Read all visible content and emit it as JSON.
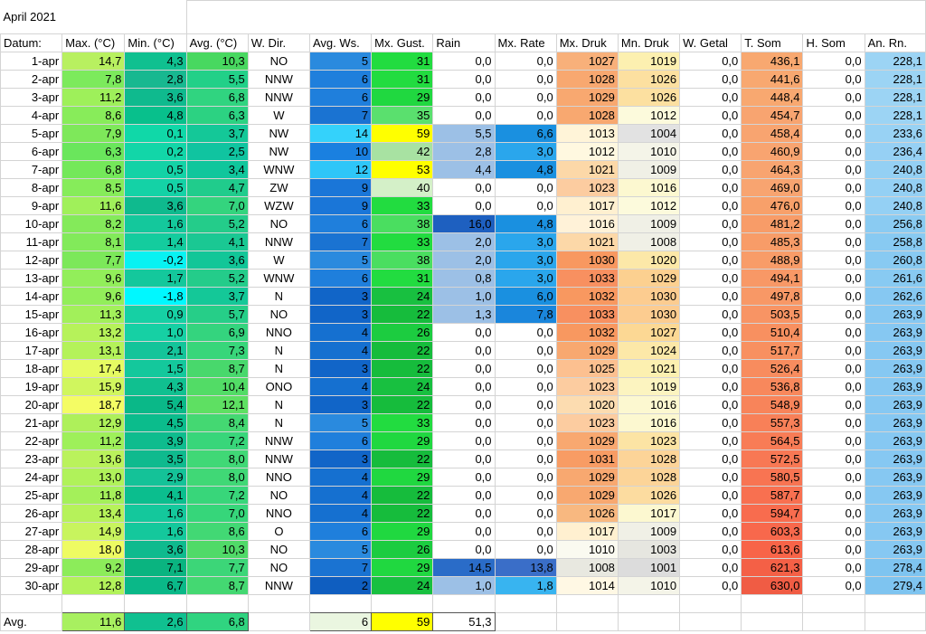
{
  "title": "April 2021",
  "headers": [
    "Datum:",
    "Max. (°C)",
    "Min. (°C)",
    "Avg. (°C)",
    "W. Dir.",
    "Avg. Ws.",
    "Mx. Gust.",
    "Rain",
    "Mx. Rate",
    "Mx. Druk",
    "Mn. Druk",
    "W. Getal",
    "T. Som",
    "H. Som",
    "An. Rn."
  ],
  "rows": [
    [
      "1-apr",
      "14,7",
      "4,3",
      "10,3",
      "NO",
      "5",
      "31",
      "0,0",
      "0,0",
      "1027",
      "1019",
      "0,0",
      "436,1",
      "0,0",
      "228,1"
    ],
    [
      "2-apr",
      "7,8",
      "2,8",
      "5,5",
      "NNW",
      "6",
      "31",
      "0,0",
      "0,0",
      "1028",
      "1026",
      "0,0",
      "441,6",
      "0,0",
      "228,1"
    ],
    [
      "3-apr",
      "11,2",
      "3,6",
      "6,8",
      "NNW",
      "6",
      "29",
      "0,0",
      "0,0",
      "1029",
      "1026",
      "0,0",
      "448,4",
      "0,0",
      "228,1"
    ],
    [
      "4-apr",
      "8,6",
      "4,8",
      "6,3",
      "W",
      "7",
      "35",
      "0,0",
      "0,0",
      "1028",
      "1012",
      "0,0",
      "454,7",
      "0,0",
      "228,1"
    ],
    [
      "5-apr",
      "7,9",
      "0,1",
      "3,7",
      "NW",
      "14",
      "59",
      "5,5",
      "6,6",
      "1013",
      "1004",
      "0,0",
      "458,4",
      "0,0",
      "233,6"
    ],
    [
      "6-apr",
      "6,3",
      "0,2",
      "2,5",
      "NW",
      "10",
      "42",
      "2,8",
      "3,0",
      "1012",
      "1010",
      "0,0",
      "460,9",
      "0,0",
      "236,4"
    ],
    [
      "7-apr",
      "6,8",
      "0,5",
      "3,4",
      "WNW",
      "12",
      "53",
      "4,4",
      "4,8",
      "1021",
      "1009",
      "0,0",
      "464,3",
      "0,0",
      "240,8"
    ],
    [
      "8-apr",
      "8,5",
      "0,5",
      "4,7",
      "ZW",
      "9",
      "40",
      "0,0",
      "0,0",
      "1023",
      "1016",
      "0,0",
      "469,0",
      "0,0",
      "240,8"
    ],
    [
      "9-apr",
      "11,6",
      "3,6",
      "7,0",
      "WZW",
      "9",
      "33",
      "0,0",
      "0,0",
      "1017",
      "1012",
      "0,0",
      "476,0",
      "0,0",
      "240,8"
    ],
    [
      "10-apr",
      "8,2",
      "1,6",
      "5,2",
      "NO",
      "6",
      "38",
      "16,0",
      "4,8",
      "1016",
      "1009",
      "0,0",
      "481,2",
      "0,0",
      "256,8"
    ],
    [
      "11-apr",
      "8,1",
      "1,4",
      "4,1",
      "NNW",
      "7",
      "33",
      "2,0",
      "3,0",
      "1021",
      "1008",
      "0,0",
      "485,3",
      "0,0",
      "258,8"
    ],
    [
      "12-apr",
      "7,7",
      "-0,2",
      "3,6",
      "W",
      "5",
      "38",
      "2,0",
      "3,0",
      "1030",
      "1020",
      "0,0",
      "488,9",
      "0,0",
      "260,8"
    ],
    [
      "13-apr",
      "9,6",
      "1,7",
      "5,2",
      "WNW",
      "6",
      "31",
      "0,8",
      "3,0",
      "1033",
      "1029",
      "0,0",
      "494,1",
      "0,0",
      "261,6"
    ],
    [
      "14-apr",
      "9,6",
      "-1,8",
      "3,7",
      "N",
      "3",
      "24",
      "1,0",
      "6,0",
      "1032",
      "1030",
      "0,0",
      "497,8",
      "0,0",
      "262,6"
    ],
    [
      "15-apr",
      "11,3",
      "0,9",
      "5,7",
      "NO",
      "3",
      "22",
      "1,3",
      "7,8",
      "1033",
      "1030",
      "0,0",
      "503,5",
      "0,0",
      "263,9"
    ],
    [
      "16-apr",
      "13,2",
      "1,0",
      "6,9",
      "NNO",
      "4",
      "26",
      "0,0",
      "0,0",
      "1032",
      "1027",
      "0,0",
      "510,4",
      "0,0",
      "263,9"
    ],
    [
      "17-apr",
      "13,1",
      "2,1",
      "7,3",
      "N",
      "4",
      "22",
      "0,0",
      "0,0",
      "1029",
      "1024",
      "0,0",
      "517,7",
      "0,0",
      "263,9"
    ],
    [
      "18-apr",
      "17,4",
      "1,5",
      "8,7",
      "N",
      "3",
      "22",
      "0,0",
      "0,0",
      "1025",
      "1021",
      "0,0",
      "526,4",
      "0,0",
      "263,9"
    ],
    [
      "19-apr",
      "15,9",
      "4,3",
      "10,4",
      "ONO",
      "4",
      "24",
      "0,0",
      "0,0",
      "1023",
      "1019",
      "0,0",
      "536,8",
      "0,0",
      "263,9"
    ],
    [
      "20-apr",
      "18,7",
      "5,4",
      "12,1",
      "N",
      "3",
      "22",
      "0,0",
      "0,0",
      "1020",
      "1016",
      "0,0",
      "548,9",
      "0,0",
      "263,9"
    ],
    [
      "21-apr",
      "12,9",
      "4,5",
      "8,4",
      "N",
      "5",
      "33",
      "0,0",
      "0,0",
      "1023",
      "1016",
      "0,0",
      "557,3",
      "0,0",
      "263,9"
    ],
    [
      "22-apr",
      "11,2",
      "3,9",
      "7,2",
      "NNW",
      "6",
      "29",
      "0,0",
      "0,0",
      "1029",
      "1023",
      "0,0",
      "564,5",
      "0,0",
      "263,9"
    ],
    [
      "23-apr",
      "13,6",
      "3,5",
      "8,0",
      "NNW",
      "3",
      "22",
      "0,0",
      "0,0",
      "1031",
      "1028",
      "0,0",
      "572,5",
      "0,0",
      "263,9"
    ],
    [
      "24-apr",
      "13,0",
      "2,9",
      "8,0",
      "NNO",
      "4",
      "29",
      "0,0",
      "0,0",
      "1029",
      "1028",
      "0,0",
      "580,5",
      "0,0",
      "263,9"
    ],
    [
      "25-apr",
      "11,8",
      "4,1",
      "7,2",
      "NO",
      "4",
      "22",
      "0,0",
      "0,0",
      "1029",
      "1026",
      "0,0",
      "587,7",
      "0,0",
      "263,9"
    ],
    [
      "26-apr",
      "13,4",
      "1,6",
      "7,0",
      "NNO",
      "4",
      "22",
      "0,0",
      "0,0",
      "1026",
      "1017",
      "0,0",
      "594,7",
      "0,0",
      "263,9"
    ],
    [
      "27-apr",
      "14,9",
      "1,6",
      "8,6",
      "O",
      "6",
      "29",
      "0,0",
      "0,0",
      "1017",
      "1009",
      "0,0",
      "603,3",
      "0,0",
      "263,9"
    ],
    [
      "28-apr",
      "18,0",
      "3,6",
      "10,3",
      "NO",
      "5",
      "26",
      "0,0",
      "0,0",
      "1010",
      "1003",
      "0,0",
      "613,6",
      "0,0",
      "263,9"
    ],
    [
      "29-apr",
      "9,2",
      "7,1",
      "7,7",
      "NO",
      "7",
      "29",
      "14,5",
      "13,8",
      "1008",
      "1001",
      "0,0",
      "621,3",
      "0,0",
      "278,4"
    ],
    [
      "30-apr",
      "12,8",
      "6,7",
      "8,7",
      "NNW",
      "2",
      "24",
      "1,0",
      "1,8",
      "1014",
      "1010",
      "0,0",
      "630,0",
      "0,0",
      "279,4"
    ]
  ],
  "colors": {
    "max": [
      "#b8f060",
      "#7cea5c",
      "#9ef05a",
      "#88ec5a",
      "#7ee85a",
      "#6ae65c",
      "#74e85a",
      "#86ec5a",
      "#a0f05a",
      "#84ea5a",
      "#82ea5a",
      "#7ce85a",
      "#92ee5a",
      "#92ee5a",
      "#a2f05a",
      "#b6f25a",
      "#b4f25a",
      "#e6fb62",
      "#d0f65e",
      "#f4fc64",
      "#aef05a",
      "#9ef05a",
      "#baf25c",
      "#b0f25a",
      "#a4f05a",
      "#b6f25a",
      "#c8f45e",
      "#eefb62",
      "#8cec5a",
      "#b2f25a"
    ],
    "min": [
      "#10c090",
      "#18b890",
      "#0fba8e",
      "#08c08c",
      "#10d8a8",
      "#12d6a8",
      "#14d2a6",
      "#14d2a6",
      "#0fba8e",
      "#14c89c",
      "#14cc9e",
      "#08f2f2",
      "#14c89c",
      "#00f8ff",
      "#16d0a4",
      "#16d0a4",
      "#14c49a",
      "#14c89c",
      "#10c090",
      "#0ab888",
      "#0bbc8c",
      "#0ebc8e",
      "#0fba8e",
      "#14c298",
      "#0bbe8e",
      "#14c89c",
      "#14c89c",
      "#0fba8e",
      "#0ab480",
      "#0ab888"
    ],
    "avg": [
      "#48d860",
      "#22d088",
      "#30d480",
      "#2cd282",
      "#14c898",
      "#10c4a0",
      "#10c69c",
      "#20cc8c",
      "#34d47e",
      "#24cc8a",
      "#1ac893",
      "#12c698",
      "#24cc8a",
      "#14c898",
      "#26ce88",
      "#34d47e",
      "#38d67a",
      "#48d86c",
      "#52dc66",
      "#5ee062",
      "#44d872",
      "#38d67a",
      "#40d876",
      "#40d876",
      "#38d67a",
      "#36d67a",
      "#42d874",
      "#50da68",
      "#3cd678",
      "#44d872"
    ],
    "ws": [
      "#2a8ade",
      "#1f7fdc",
      "#1f7fdc",
      "#1a73d2",
      "#34d2fb",
      "#1a80e0",
      "#2ec6f8",
      "#1a76d8",
      "#1a76d8",
      "#1f7fdc",
      "#1a73d2",
      "#2a8ade",
      "#1f7fdc",
      "#1165c8",
      "#1165c8",
      "#1570d0",
      "#1570d0",
      "#1165c8",
      "#1570d0",
      "#1165c8",
      "#2a8ade",
      "#1f7fdc",
      "#1165c8",
      "#1570d0",
      "#1570d0",
      "#1570d0",
      "#1f7fdc",
      "#2a8ade",
      "#1a73d2",
      "#0f5ec0"
    ],
    "gust": [
      "#22dc40",
      "#22dc40",
      "#20d840",
      "#5ae06e",
      "#ffff00",
      "#a8e2a2",
      "#ffff00",
      "#d4f0c8",
      "#22dc40",
      "#4ade60",
      "#22dc40",
      "#4ade60",
      "#22dc40",
      "#18c040",
      "#16bc3c",
      "#1ccc40",
      "#16bc3c",
      "#16bc3c",
      "#18c040",
      "#16bc3c",
      "#22dc40",
      "#20d840",
      "#16bc3c",
      "#20d840",
      "#16bc3c",
      "#16bc3c",
      "#20d840",
      "#1ccc40",
      "#20d840",
      "#18c040"
    ],
    "rain": [
      "#ffffff",
      "#ffffff",
      "#ffffff",
      "#ffffff",
      "#9cc0e6",
      "#9cc0e6",
      "#9cc0e6",
      "#ffffff",
      "#ffffff",
      "#1e60c0",
      "#9cc0e6",
      "#9cc0e6",
      "#9cc0e6",
      "#9cc0e6",
      "#9cc0e6",
      "#ffffff",
      "#ffffff",
      "#ffffff",
      "#ffffff",
      "#ffffff",
      "#ffffff",
      "#ffffff",
      "#ffffff",
      "#ffffff",
      "#ffffff",
      "#ffffff",
      "#ffffff",
      "#ffffff",
      "#2a6cc8",
      "#9cc0e6"
    ],
    "rate": [
      "#ffffff",
      "#ffffff",
      "#ffffff",
      "#ffffff",
      "#1a90e0",
      "#2aa6ec",
      "#1a90e0",
      "#ffffff",
      "#ffffff",
      "#1a90e0",
      "#2aa6ec",
      "#2aa6ec",
      "#2aa6ec",
      "#1a90e0",
      "#1a86dc",
      "#ffffff",
      "#ffffff",
      "#ffffff",
      "#ffffff",
      "#ffffff",
      "#ffffff",
      "#ffffff",
      "#ffffff",
      "#ffffff",
      "#ffffff",
      "#ffffff",
      "#ffffff",
      "#ffffff",
      "#3a6ec8",
      "#38b4f0"
    ],
    "mxdruk": [
      "#f8b07a",
      "#f8a870",
      "#f8a870",
      "#f8a870",
      "#fff4d8",
      "#fff8e0",
      "#fcd8a8",
      "#fccca0",
      "#fff0d0",
      "#fff2d8",
      "#fcd8a8",
      "#f89860",
      "#f89060",
      "#f89860",
      "#f89060",
      "#f89860",
      "#f8a870",
      "#fcc090",
      "#fccca0",
      "#fcdcb0",
      "#fccca0",
      "#f8a870",
      "#f89c64",
      "#f8a870",
      "#f8a870",
      "#f8b880",
      "#fff0d0",
      "#fafaf0",
      "#e8e8e0",
      "#fff8e4"
    ],
    "mndruk": [
      "#fcf0b0",
      "#fce0a0",
      "#fce0a0",
      "#fcfadc",
      "#e2e2e2",
      "#f4f4e8",
      "#f0f0e6",
      "#fcf8d0",
      "#fcfadc",
      "#f0f0e6",
      "#f0f0e6",
      "#fce8a8",
      "#fcd090",
      "#fccc90",
      "#fccc90",
      "#fcd894",
      "#fce8a8",
      "#fcf0b0",
      "#fcf4c0",
      "#fcf8d0",
      "#fcf8d0",
      "#fce4a4",
      "#fcd498",
      "#fcd498",
      "#fcdca0",
      "#fcf8d0",
      "#f0f0e6",
      "#e6e6e0",
      "#dcdcdc",
      "#f4f4e8"
    ],
    "tsom": [
      "#f8a870",
      "#f8a870",
      "#f8a870",
      "#f8a470",
      "#f8a470",
      "#f8a470",
      "#f8a470",
      "#f8a470",
      "#f8a06a",
      "#f89c68",
      "#f89c68",
      "#f89c68",
      "#f89866",
      "#f89866",
      "#f89464",
      "#f89060",
      "#f89060",
      "#f88c5e",
      "#f8885c",
      "#f8845a",
      "#f88058",
      "#f87c56",
      "#f87854",
      "#f87452",
      "#f87050",
      "#f86c4e",
      "#f8684c",
      "#f86448",
      "#f46046",
      "#f05c44"
    ],
    "anrn": [
      "#9cd4f4",
      "#9cd4f4",
      "#9cd4f4",
      "#9cd4f4",
      "#98d2f4",
      "#96d0f4",
      "#94d0f4",
      "#94d0f4",
      "#94d0f4",
      "#8acbf2",
      "#88caf2",
      "#88caf2",
      "#88caf2",
      "#86c8f2",
      "#86c8f2",
      "#86c8f2",
      "#86c8f2",
      "#86c8f2",
      "#86c8f2",
      "#86c8f2",
      "#86c8f2",
      "#86c8f2",
      "#86c8f2",
      "#86c8f2",
      "#86c8f2",
      "#86c8f2",
      "#86c8f2",
      "#86c8f2",
      "#7ec4f0",
      "#7ec4f0"
    ]
  },
  "avg_row": {
    "label": "Avg.",
    "max": "11,6",
    "min": "2,6",
    "avg": "6,8",
    "ws": "6",
    "gust": "59",
    "rain": "51,3",
    "max_color": "#a8f060",
    "min_color": "#10c090",
    "avg_color": "#30d480",
    "ws_color": "#eaf6e0",
    "gust_color": "#ffff00",
    "rain_color": "#ffffff"
  }
}
